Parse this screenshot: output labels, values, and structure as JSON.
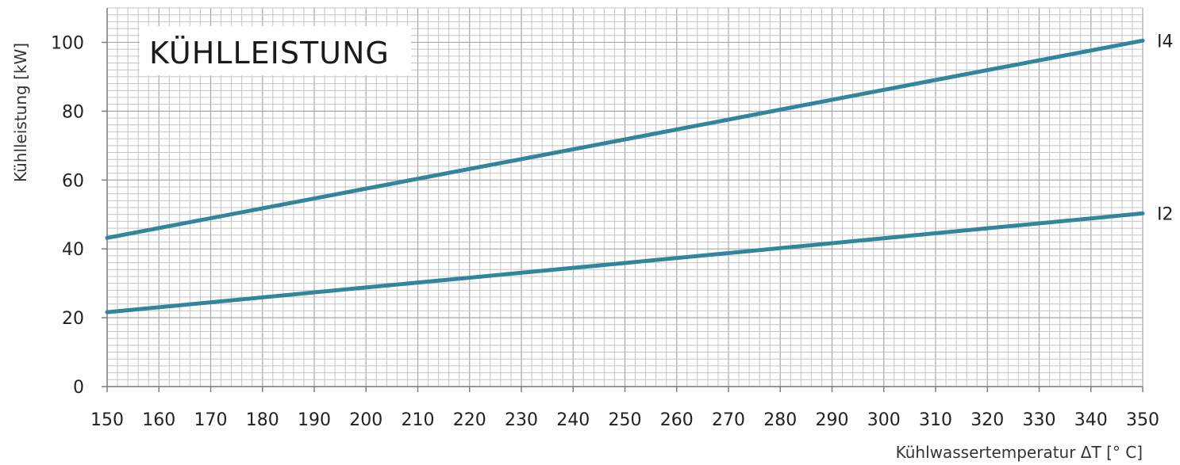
{
  "chart_data": {
    "type": "line",
    "title": "KÜHLLEISTUNG",
    "xlabel": "Kühlwassertemperatur ΔT [° C]",
    "ylabel": "Kühlleistung [kW]",
    "xlim": [
      150,
      350
    ],
    "ylim": [
      0,
      110
    ],
    "x_ticks": [
      150,
      160,
      170,
      180,
      190,
      200,
      210,
      220,
      230,
      240,
      250,
      260,
      270,
      280,
      290,
      300,
      310,
      320,
      330,
      340,
      350
    ],
    "y_ticks": [
      0,
      20,
      40,
      60,
      80,
      100
    ],
    "x_minor_step": 2,
    "y_minor_step": 2,
    "grid": true,
    "legend": "none",
    "color": "#31859c",
    "series": [
      {
        "name": "I4",
        "x": [
          150,
          200,
          250,
          300,
          350
        ],
        "values": [
          43.2,
          57.5,
          71.8,
          86.2,
          100.5
        ]
      },
      {
        "name": "I2",
        "x": [
          150,
          200,
          250,
          300,
          350
        ],
        "values": [
          21.6,
          28.8,
          35.9,
          43.1,
          50.3
        ]
      }
    ]
  }
}
